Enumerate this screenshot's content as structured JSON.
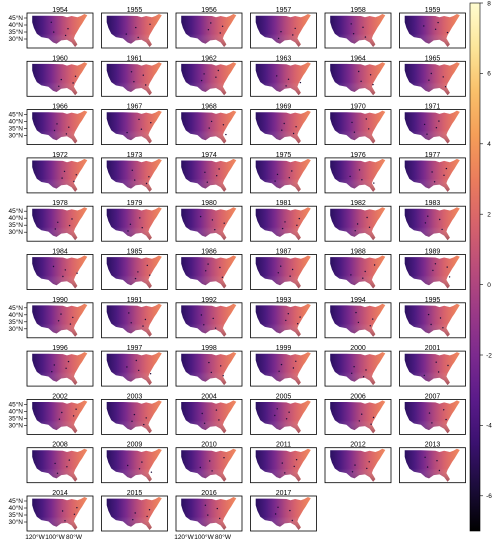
{
  "panel_years": [
    "1954",
    "1955",
    "1956",
    "1957",
    "1958",
    "1959",
    "1960",
    "1961",
    "1962",
    "1963",
    "1964",
    "1965",
    "1966",
    "1967",
    "1968",
    "1969",
    "1970",
    "1971",
    "1972",
    "1973",
    "1974",
    "1975",
    "1976",
    "1977",
    "1978",
    "1979",
    "1980",
    "1981",
    "1982",
    "1983",
    "1984",
    "1985",
    "1986",
    "1987",
    "1988",
    "1989",
    "1990",
    "1991",
    "1992",
    "1993",
    "1994",
    "1995",
    "1996",
    "1997",
    "1998",
    "1999",
    "2000",
    "2001",
    "2002",
    "2003",
    "2004",
    "2005",
    "2006",
    "2007",
    "2008",
    "2009",
    "2010",
    "2011",
    "2012",
    "2013",
    "2014",
    "2015",
    "2016",
    "2017"
  ],
  "axes": {
    "lat_ticks": [
      "45°N",
      "40°N",
      "35°N",
      "30°N"
    ],
    "lon_ticks": [
      "120°W",
      "100°W",
      "80°W"
    ]
  },
  "colorbar": {
    "ticks": [
      "8",
      "6",
      "4",
      "2",
      "0",
      "-2",
      "-4",
      "-6"
    ],
    "min": -7,
    "max": 8,
    "colors": [
      "#000000",
      "#1b0c3a",
      "#3b1170",
      "#5b1b8a",
      "#7c2a8e",
      "#9c3a86",
      "#bb4d7a",
      "#d7636b",
      "#eb7d5c",
      "#f59e58",
      "#f9c06a",
      "#fce69a",
      "#fffdd0"
    ]
  }
}
